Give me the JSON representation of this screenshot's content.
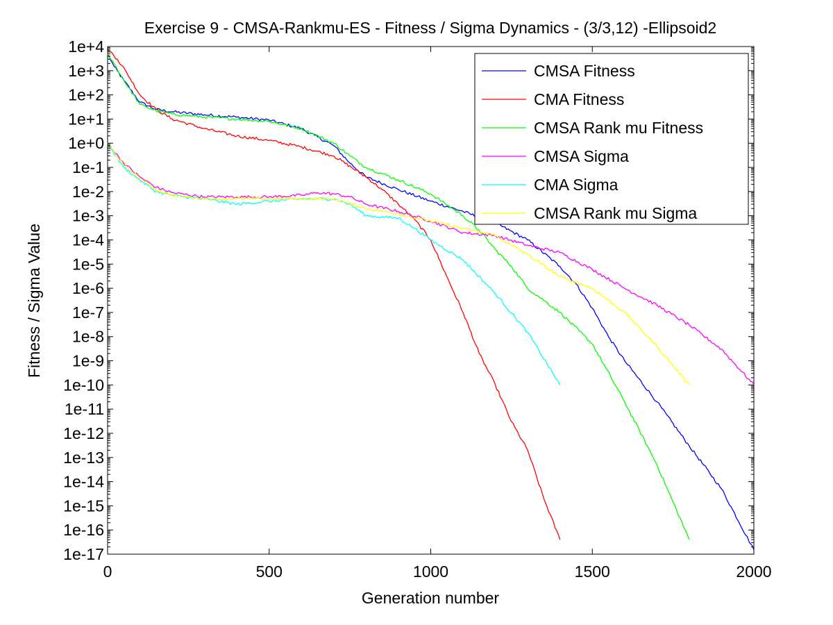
{
  "chart_data": {
    "type": "line",
    "title": "Exercise 9 - CMSA-Rankmu-ES - Fitness / Sigma Dynamics - (3/3,12) -Ellipsoid2",
    "xlabel": "Generation number",
    "ylabel": "Fitness / Sigma Value",
    "xlim": [
      0,
      2000
    ],
    "ylim": [
      1e-17,
      10000.0
    ],
    "yscale": "log",
    "grid": false,
    "legend_position": "top-right",
    "x_ticks": [
      0,
      500,
      1000,
      1500,
      2000
    ],
    "x_tick_labels": [
      "0",
      "500",
      "1000",
      "1500",
      "2000"
    ],
    "y_ticks": [
      10000.0,
      1000.0,
      100.0,
      10.0,
      1,
      0.1,
      0.01,
      0.001,
      0.0001,
      1e-05,
      1e-06,
      1e-07,
      1e-08,
      1e-09,
      1e-10,
      1e-11,
      1e-12,
      1e-13,
      1e-14,
      1e-15,
      1e-16,
      1e-17
    ],
    "y_tick_labels": [
      "1e+4",
      "1e+3",
      "1e+2",
      "1e+1",
      "1e+0",
      "1e-1",
      "1e-2",
      "1e-3",
      "1e-4",
      "1e-5",
      "1e-6",
      "1e-7",
      "1e-8",
      "1e-9",
      "1e-10",
      "1e-11",
      "1e-12",
      "1e-13",
      "1e-14",
      "1e-15",
      "1e-16",
      "1e-17"
    ],
    "series": [
      {
        "name": "CMSA Fitness",
        "color": "#0000ff",
        "x": [
          0,
          20,
          50,
          100,
          150,
          200,
          300,
          400,
          500,
          600,
          700,
          750,
          800,
          900,
          1000,
          1100,
          1200,
          1300,
          1400,
          1450,
          1500,
          1550,
          1600,
          1700,
          1800,
          1900,
          2000
        ],
        "y": [
          5000,
          1500,
          400,
          50,
          25,
          20,
          15,
          12,
          9,
          4,
          0.8,
          0.15,
          0.04,
          0.012,
          0.004,
          0.0015,
          0.0005,
          0.0001,
          8e-06,
          1.5e-06,
          1.5e-07,
          1e-08,
          1e-09,
          2e-11,
          3e-13,
          5e-15,
          1.5e-17
        ]
      },
      {
        "name": "CMA Fitness",
        "color": "#ff0000",
        "x": [
          0,
          30,
          60,
          100,
          150,
          200,
          300,
          400,
          500,
          600,
          700,
          800,
          850,
          900,
          950,
          1000,
          1050,
          1100,
          1150,
          1200,
          1250,
          1300,
          1350,
          1400
        ],
        "y": [
          8000,
          3000,
          800,
          100,
          25,
          10,
          4,
          2,
          1.3,
          0.7,
          0.3,
          0.04,
          0.012,
          0.003,
          0.0007,
          0.0001,
          3e-06,
          1e-07,
          2e-09,
          1e-10,
          3e-12,
          2e-13,
          2e-15,
          4e-17
        ]
      },
      {
        "name": "CMSA Rank mu Fitness",
        "color": "#00ff00",
        "x": [
          0,
          20,
          50,
          100,
          150,
          200,
          300,
          400,
          500,
          600,
          700,
          750,
          800,
          900,
          1000,
          1100,
          1150,
          1200,
          1250,
          1300,
          1400,
          1500,
          1600,
          1700,
          1800
        ],
        "y": [
          5000,
          2000,
          400,
          40,
          22,
          16,
          12,
          10,
          8,
          4,
          1,
          0.3,
          0.1,
          0.03,
          0.008,
          0.001,
          0.00025,
          4e-05,
          8e-06,
          1e-06,
          1e-07,
          5e-09,
          2e-11,
          5e-14,
          4e-17
        ]
      },
      {
        "name": "CMSA Sigma",
        "color": "#ff00ff",
        "x": [
          0,
          50,
          100,
          150,
          200,
          300,
          400,
          500,
          600,
          650,
          700,
          750,
          800,
          900,
          1000,
          1100,
          1200,
          1300,
          1400,
          1500,
          1600,
          1700,
          1800,
          1900,
          2000
        ],
        "y": [
          1,
          0.15,
          0.04,
          0.015,
          0.009,
          0.006,
          0.006,
          0.006,
          0.007,
          0.009,
          0.008,
          0.006,
          0.003,
          0.0015,
          0.0006,
          0.0002,
          0.00015,
          6e-05,
          3e-05,
          6e-06,
          1e-06,
          2e-07,
          3e-08,
          3e-09,
          1e-10
        ]
      },
      {
        "name": "CMA Sigma",
        "color": "#00ffff",
        "x": [
          0,
          50,
          100,
          150,
          200,
          300,
          400,
          500,
          600,
          700,
          750,
          800,
          900,
          950,
          1000,
          1100,
          1200,
          1300,
          1400
        ],
        "y": [
          1,
          0.1,
          0.03,
          0.01,
          0.007,
          0.005,
          0.003,
          0.004,
          0.005,
          0.005,
          0.003,
          0.001,
          0.0008,
          0.0003,
          0.0001,
          1.5e-05,
          6e-07,
          1.5e-08,
          1e-10
        ]
      },
      {
        "name": "CMSA Rank mu Sigma",
        "color": "#ffff00",
        "x": [
          0,
          50,
          100,
          150,
          200,
          300,
          400,
          500,
          600,
          700,
          800,
          900,
          1000,
          1100,
          1200,
          1250,
          1300,
          1400,
          1500,
          1600,
          1700,
          1800
        ],
        "y": [
          1,
          0.12,
          0.035,
          0.012,
          0.007,
          0.005,
          0.005,
          0.005,
          0.005,
          0.005,
          0.002,
          0.0012,
          0.0006,
          0.0003,
          0.00015,
          6e-05,
          2.5e-05,
          3e-06,
          1e-06,
          1e-07,
          4e-09,
          1e-10
        ]
      }
    ]
  }
}
